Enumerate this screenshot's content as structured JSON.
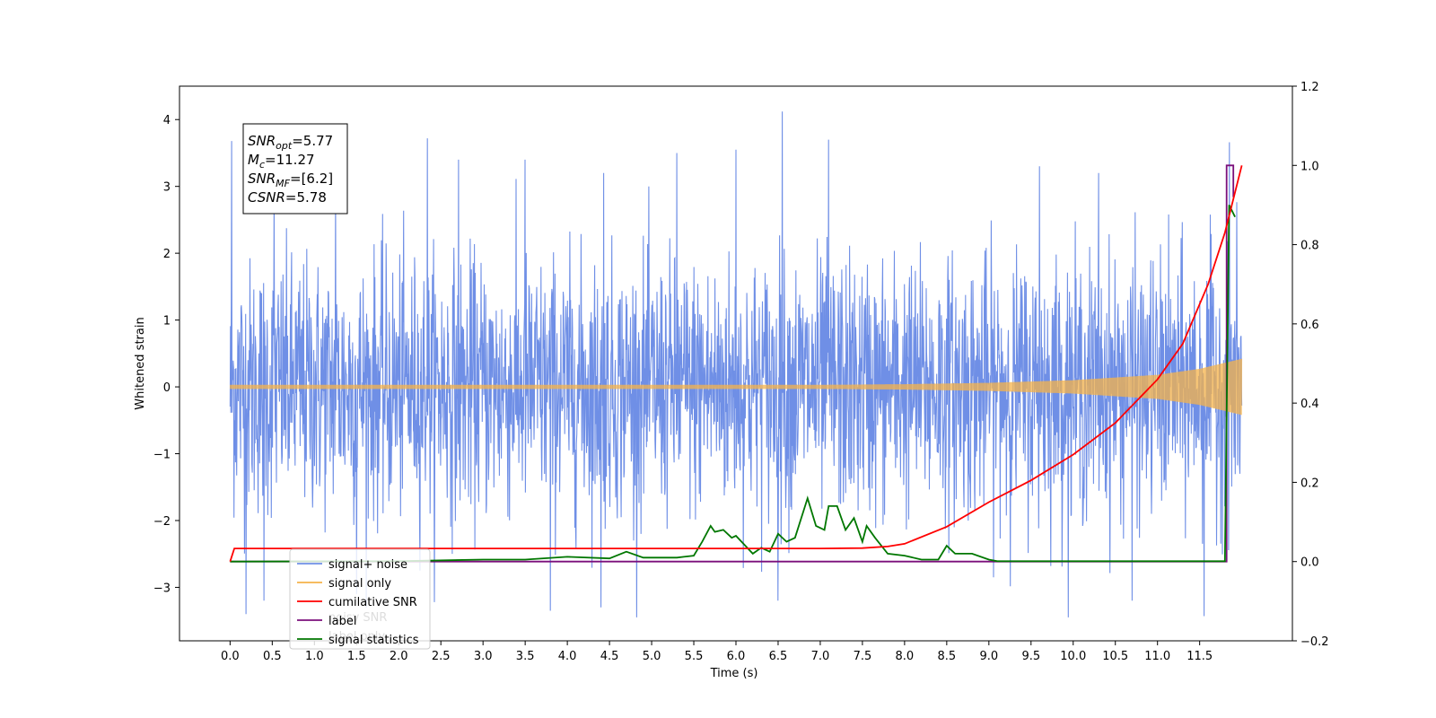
{
  "chart_data": {
    "type": "line",
    "xlabel": "Time (s)",
    "ylabel": "Whitened strain",
    "y2label": "",
    "xlim": [
      -0.6,
      12.6
    ],
    "ylim": [
      -3.8,
      4.5
    ],
    "y2lim": [
      -0.2,
      1.2
    ],
    "x_ticks": [
      0.0,
      0.5,
      1.0,
      1.5,
      2.0,
      2.5,
      3.0,
      3.5,
      4.0,
      4.5,
      5.0,
      5.5,
      6.0,
      6.5,
      7.0,
      7.5,
      8.0,
      8.5,
      9.0,
      9.5,
      10.0,
      10.5,
      11.0,
      11.5
    ],
    "x_tick_labels": [
      "0.0",
      "0.5",
      "1.0",
      "1.5",
      "2.0",
      "2.5",
      "3.0",
      "3.5",
      "4.0",
      "4.5",
      "5.0",
      "5.5",
      "6.0",
      "6.5",
      "7.0",
      "7.5",
      "8.0",
      "8.5",
      "9.0",
      "9.5",
      "10.0",
      "10.5",
      "11.0",
      "11.5"
    ],
    "y_ticks": [
      -3,
      -2,
      -1,
      0,
      1,
      2,
      3,
      4
    ],
    "y_tick_labels": [
      "−3",
      "−2",
      "−1",
      "0",
      "1",
      "2",
      "3",
      "4"
    ],
    "y2_ticks": [
      -0.2,
      0.0,
      0.2,
      0.4,
      0.6,
      0.8,
      1.0,
      1.2
    ],
    "y2_tick_labels": [
      "−0.2",
      "0.0",
      "0.2",
      "0.4",
      "0.6",
      "0.8",
      "1.0",
      "1.2"
    ],
    "grid": false,
    "legend_position": "lower-left",
    "colors": {
      "noise": "#6f8fe6",
      "signal": "#f5b34a",
      "cumulative_snr": "#ff0000",
      "label": "#7b0f7b",
      "statistics": "#007700"
    },
    "series": [
      {
        "name": "signal+ noise",
        "axis": "left",
        "description_values": "white noise sampled over 0.0–12.0 s, amplitude roughly ±2.5 with peaks to about ±4",
        "t_range": [
          0.0,
          12.0
        ],
        "sample_peaks": [
          [
            0.02,
            3.68
          ],
          [
            0.52,
            2.83
          ],
          [
            1.25,
            3.0
          ],
          [
            2.34,
            3.72
          ],
          [
            2.71,
            3.4
          ],
          [
            3.5,
            3.4
          ],
          [
            4.43,
            3.2
          ],
          [
            5.3,
            3.5
          ],
          [
            6.0,
            3.55
          ],
          [
            6.55,
            4.12
          ],
          [
            7.1,
            3.7
          ],
          [
            9.6,
            3.3
          ],
          [
            10.3,
            3.2
          ],
          [
            11.85,
            3.66
          ],
          [
            0.19,
            -3.4
          ],
          [
            0.4,
            -3.2
          ],
          [
            1.5,
            -3.1
          ],
          [
            3.8,
            -3.35
          ],
          [
            4.4,
            -3.3
          ],
          [
            6.5,
            -3.2
          ],
          [
            10.7,
            -3.2
          ],
          [
            11.55,
            -3.43
          ]
        ]
      },
      {
        "name": "signal only",
        "axis": "left",
        "description_values": "chirp centred on 0, envelope about ±0.03 until 8 s, growing to about ±0.42 at 12.0 s",
        "envelope": [
          [
            0.0,
            0.03
          ],
          [
            7.0,
            0.03
          ],
          [
            8.0,
            0.04
          ],
          [
            9.0,
            0.06
          ],
          [
            10.0,
            0.1
          ],
          [
            11.0,
            0.18
          ],
          [
            11.5,
            0.27
          ],
          [
            12.0,
            0.42
          ]
        ]
      },
      {
        "name": "cumilative SNR",
        "axis": "right",
        "x": [
          0.0,
          0.05,
          7.0,
          7.5,
          7.8,
          8.0,
          8.5,
          9.0,
          9.5,
          10.0,
          10.5,
          11.0,
          11.3,
          11.6,
          11.8,
          12.0
        ],
        "y": [
          0.0,
          0.033,
          0.033,
          0.034,
          0.038,
          0.045,
          0.088,
          0.15,
          0.205,
          0.27,
          0.35,
          0.46,
          0.55,
          0.7,
          0.83,
          1.0
        ]
      },
      {
        "name": "label",
        "axis": "right",
        "x": [
          0.0,
          11.82,
          11.82,
          11.9,
          11.9
        ],
        "y": [
          0.0,
          0.0,
          1.0,
          1.0,
          0.92
        ]
      },
      {
        "name": "signal statistics",
        "axis": "right",
        "x": [
          0.0,
          2.0,
          3.0,
          3.5,
          4.0,
          4.5,
          4.7,
          4.9,
          5.3,
          5.5,
          5.6,
          5.7,
          5.75,
          5.85,
          5.95,
          6.0,
          6.2,
          6.3,
          6.4,
          6.5,
          6.6,
          6.7,
          6.85,
          6.95,
          7.05,
          7.1,
          7.2,
          7.3,
          7.4,
          7.5,
          7.55,
          7.65,
          7.8,
          8.0,
          8.2,
          8.4,
          8.5,
          8.6,
          8.8,
          9.0,
          9.1,
          11.8,
          11.85,
          11.92
        ],
        "y": [
          0.0,
          0.001,
          0.005,
          0.005,
          0.012,
          0.008,
          0.025,
          0.01,
          0.01,
          0.015,
          0.05,
          0.09,
          0.075,
          0.08,
          0.06,
          0.065,
          0.02,
          0.035,
          0.025,
          0.07,
          0.05,
          0.06,
          0.16,
          0.09,
          0.08,
          0.14,
          0.14,
          0.08,
          0.11,
          0.05,
          0.09,
          0.06,
          0.02,
          0.015,
          0.005,
          0.005,
          0.04,
          0.02,
          0.02,
          0.005,
          0.001,
          0.001,
          0.9,
          0.87
        ]
      }
    ],
    "annotation_box": {
      "lines": [
        {
          "symbol": "SNR",
          "sub": "opt",
          "rest": "=5.77"
        },
        {
          "symbol": "M",
          "sub": "c",
          "rest": "=11.27"
        },
        {
          "symbol": "SNR",
          "sub": "MF",
          "rest": "=[6.2]"
        },
        {
          "symbol": "CSNR",
          "sub": "",
          "rest": "=5.78"
        }
      ]
    },
    "legend": [
      "signal+ noise",
      "signal only",
      "cumilative SNR",
      "label",
      "signal statistics"
    ],
    "legend_hidden_text": [
      "noisy SNR",
      "label only"
    ]
  }
}
